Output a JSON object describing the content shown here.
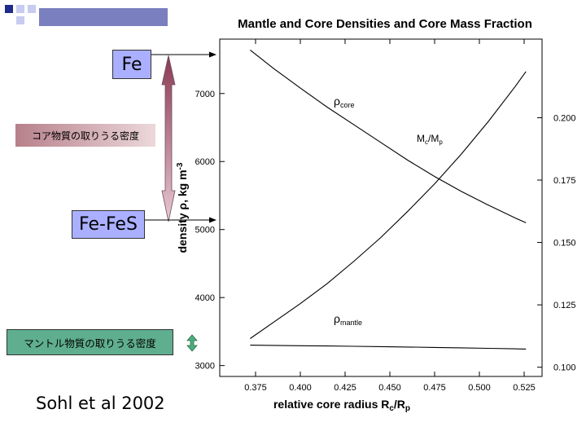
{
  "slide": {
    "fe_label": "Fe",
    "fefes_label": "Fe-FeS",
    "core_range_label": "コア物質の取りうる密度",
    "mantle_range_label": "マントル物質の取りうる密度",
    "citation": "Sohl et al 2002",
    "colors": {
      "label_box": "#aab0ff",
      "core_range_box": "#b7808a",
      "mantle_range_box": "#5fae90",
      "core_arrow": "#8a3a52",
      "mantle_arrow": "#4caf7a"
    }
  },
  "chart_data": {
    "type": "line",
    "title": "Mantle and Core Densities and Core Mass Fraction",
    "xlabel": "relative core radius R",
    "xlabel_sub1": "c",
    "xlabel_mid": "/R",
    "xlabel_sub2": "p",
    "ylabel": "density ρ, kg m",
    "ylabel_sup": "-3",
    "xlim": [
      0.355,
      0.535
    ],
    "ylim": [
      2840,
      7800
    ],
    "y2lim": [
      0.0963,
      0.2315
    ],
    "x_ticks": [
      0.375,
      0.4,
      0.425,
      0.45,
      0.475,
      0.5,
      0.525
    ],
    "x_tick_labels": [
      "0.375",
      "0.400",
      "0.425",
      "0.450",
      "0.475",
      "0.500",
      "0.525"
    ],
    "y_ticks": [
      3000,
      4000,
      5000,
      6000,
      7000
    ],
    "y_tick_labels": [
      "3000",
      "4000",
      "5000",
      "6000",
      "7000"
    ],
    "y2_ticks": [
      0.1,
      0.125,
      0.15,
      0.175,
      0.2
    ],
    "y2_tick_labels": [
      "0.100",
      "0.125",
      "0.150",
      "0.175",
      "0.200"
    ],
    "grid": false,
    "series": [
      {
        "name": "ρcore",
        "label_main": "ρ",
        "label_sub": "core",
        "axis": "left",
        "x": [
          0.372,
          0.385,
          0.4,
          0.415,
          0.43,
          0.445,
          0.46,
          0.475,
          0.49,
          0.505,
          0.52,
          0.526
        ],
        "y": [
          7640,
          7370,
          7080,
          6800,
          6540,
          6280,
          6020,
          5780,
          5560,
          5360,
          5170,
          5100
        ]
      },
      {
        "name": "Mc/Mp",
        "label_main": "M",
        "label_sub1": "c",
        "label_mid": "/M",
        "label_sub2": "p",
        "axis": "right",
        "x": [
          0.372,
          0.385,
          0.4,
          0.415,
          0.43,
          0.445,
          0.46,
          0.475,
          0.49,
          0.505,
          0.52,
          0.526
        ],
        "y": [
          0.1115,
          0.118,
          0.1255,
          0.1335,
          0.1425,
          0.152,
          0.1625,
          0.1735,
          0.1855,
          0.1985,
          0.2125,
          0.2185
        ]
      },
      {
        "name": "ρmantle",
        "label_main": "ρ",
        "label_sub": "mantle",
        "axis": "left",
        "x": [
          0.372,
          0.385,
          0.4,
          0.415,
          0.43,
          0.445,
          0.46,
          0.475,
          0.49,
          0.505,
          0.52,
          0.526
        ],
        "y": [
          3300,
          3297,
          3292,
          3288,
          3283,
          3278,
          3272,
          3266,
          3260,
          3253,
          3246,
          3243
        ]
      }
    ]
  }
}
